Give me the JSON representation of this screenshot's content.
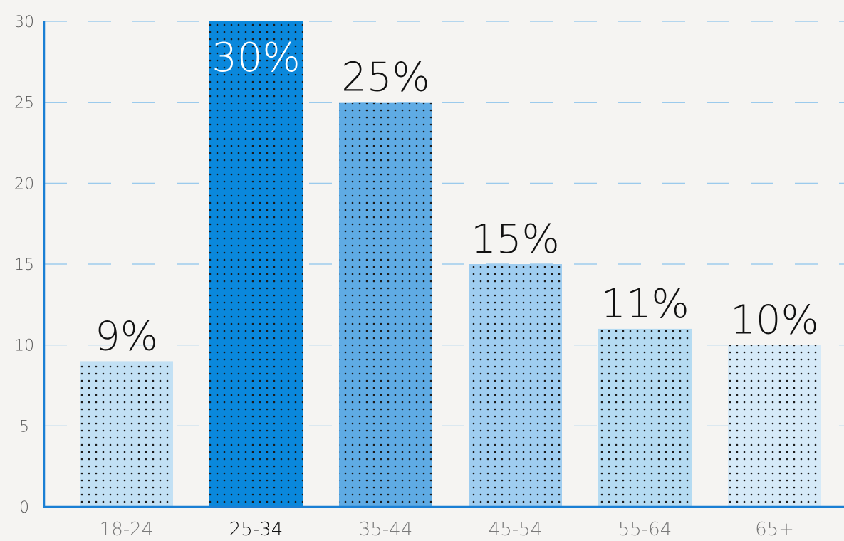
{
  "chart_data": {
    "type": "bar",
    "categories": [
      "18-24",
      "25-34",
      "35-44",
      "45-54",
      "55-64",
      "65+"
    ],
    "values": [
      9,
      30,
      25,
      15,
      11,
      10
    ],
    "data_labels": [
      "9%",
      "30%",
      "25%",
      "15%",
      "11%",
      "10%"
    ],
    "ylim": [
      0,
      30
    ],
    "yticks": [
      "0",
      "5",
      "10",
      "15",
      "20",
      "25",
      "30"
    ],
    "grid": "horizontal dashed",
    "highlighted_category": "25-34",
    "bar_pattern": "dotted",
    "colors": {
      "axis": "#1a7fd4",
      "grid": "#8ec4ec",
      "bars": [
        "#c2e0f4",
        "#0a88dc",
        "#5fabe4",
        "#9fcdf0",
        "#b5dbf2",
        "#d6eaf8"
      ],
      "label_on_bar": "#ffffff",
      "label_default": "#111111",
      "highlight_category_text": "#111111"
    }
  }
}
